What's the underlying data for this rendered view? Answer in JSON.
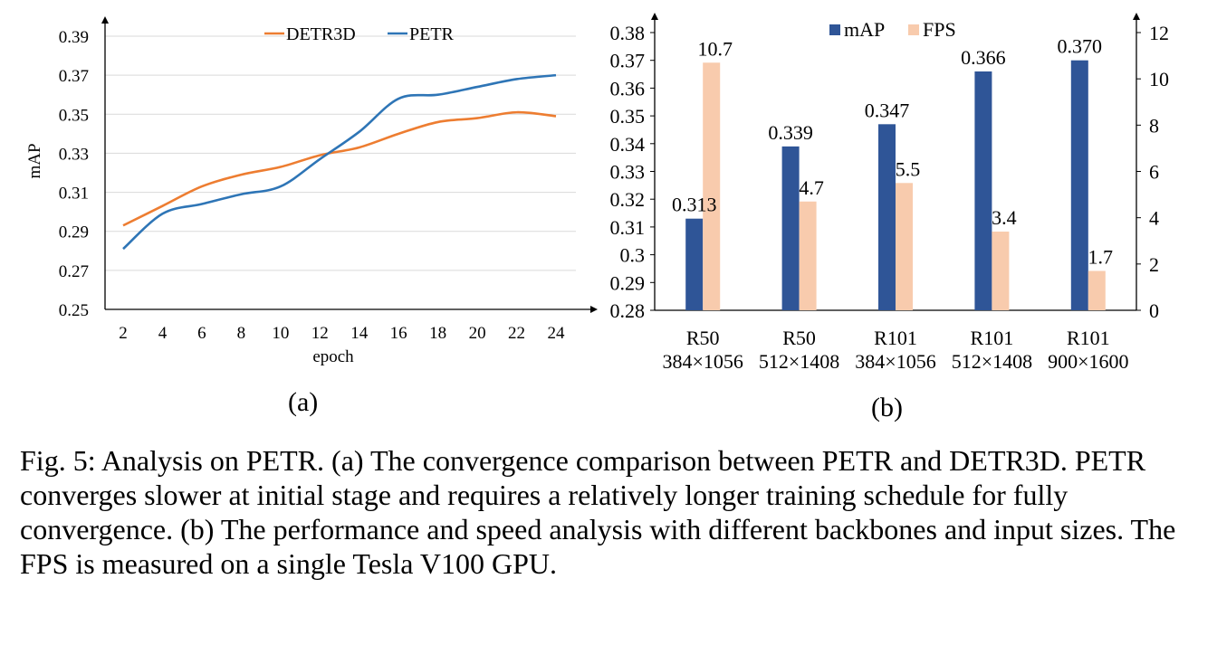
{
  "chart_data": [
    {
      "id": "a",
      "type": "line",
      "title": "",
      "xlabel": "epoch",
      "ylabel": "mAP",
      "x": [
        2,
        4,
        6,
        8,
        10,
        12,
        14,
        16,
        18,
        20,
        22,
        24
      ],
      "xticks": [
        "2",
        "4",
        "6",
        "8",
        "10",
        "12",
        "14",
        "16",
        "18",
        "20",
        "22",
        "24"
      ],
      "yticks": [
        "0.25",
        "0.27",
        "0.29",
        "0.31",
        "0.33",
        "0.35",
        "0.37",
        "0.39"
      ],
      "ylim": [
        0.25,
        0.39
      ],
      "grid": true,
      "legend_position": "top-center",
      "series": [
        {
          "name": "DETR3D",
          "color": "#ed7d31",
          "values": [
            0.293,
            0.303,
            0.313,
            0.319,
            0.323,
            0.329,
            0.333,
            0.34,
            0.346,
            0.348,
            0.351,
            0.349
          ]
        },
        {
          "name": "PETR",
          "color": "#2e75b6",
          "values": [
            0.281,
            0.299,
            0.304,
            0.309,
            0.313,
            0.327,
            0.341,
            0.358,
            0.36,
            0.364,
            0.368,
            0.37
          ]
        }
      ]
    },
    {
      "id": "b",
      "type": "bar",
      "title": "",
      "categories": [
        {
          "line1": "R50",
          "line2": "384×1056"
        },
        {
          "line1": "R50",
          "line2": "512×1408"
        },
        {
          "line1": "R101",
          "line2": "384×1056"
        },
        {
          "line1": "R101",
          "line2": "512×1408"
        },
        {
          "line1": "R101",
          "line2": "900×1600"
        }
      ],
      "ylim_left": [
        0.28,
        0.38
      ],
      "yticks_left": [
        "0.28",
        "0.29",
        "0.3",
        "0.31",
        "0.32",
        "0.33",
        "0.34",
        "0.35",
        "0.36",
        "0.37",
        "0.38"
      ],
      "ylim_right": [
        0,
        12
      ],
      "yticks_right": [
        "0",
        "2",
        "4",
        "6",
        "8",
        "10",
        "12"
      ],
      "legend_position": "top-center",
      "series": [
        {
          "name": "mAP",
          "color": "#2f5597",
          "axis": "left",
          "values": [
            0.313,
            0.339,
            0.347,
            0.366,
            0.37
          ],
          "labels": [
            "0.313",
            "0.339",
            "0.347",
            "0.366",
            "0.370"
          ]
        },
        {
          "name": "FPS",
          "color": "#f8cbad",
          "axis": "right",
          "values": [
            10.7,
            4.7,
            5.5,
            3.4,
            1.7
          ],
          "labels": [
            "10.7",
            "4.7",
            "5.5",
            "3.4",
            "1.7"
          ]
        }
      ]
    }
  ],
  "sublabels": {
    "a": "(a)",
    "b": "(b)"
  },
  "caption": "Fig. 5: Analysis on PETR. (a) The convergence comparison between PETR and DETR3D. PETR converges slower at initial stage and requires a relatively longer training schedule for fully convergence. (b) The performance and speed analysis with different backbones and input sizes. The FPS is measured on a single Tesla V100 GPU."
}
